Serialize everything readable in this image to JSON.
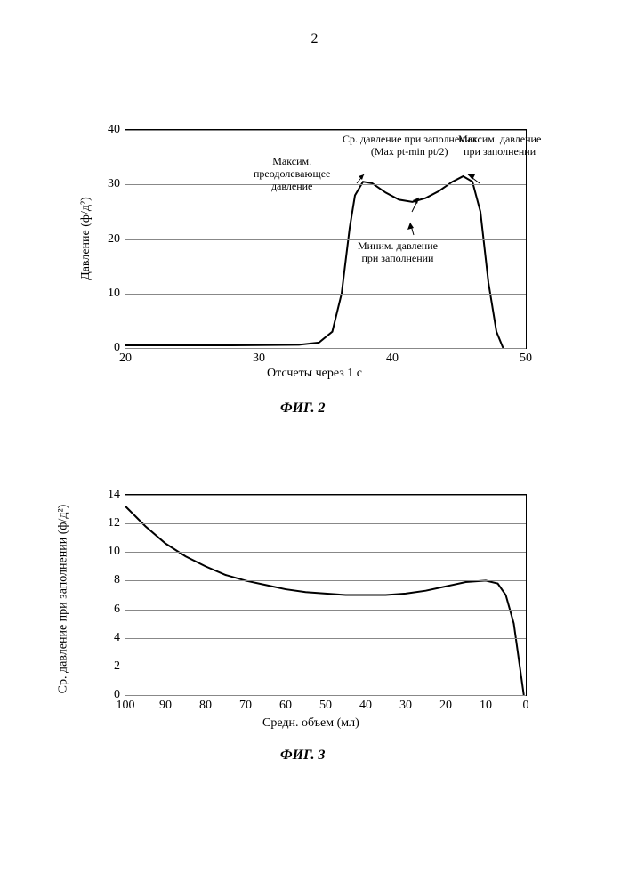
{
  "page_number": "2",
  "fig2": {
    "type": "line",
    "caption": "ФИГ. 2",
    "xlabel": "Отсчеты через 1 с",
    "ylabel": "Давление (ф/д²)",
    "xlim": [
      20,
      50
    ],
    "ylim": [
      0,
      40
    ],
    "xticks": [
      20,
      30,
      40,
      50
    ],
    "yticks": [
      0,
      10,
      20,
      30,
      40
    ],
    "grid_color": "#888888",
    "line_color": "#000000",
    "line_width": 2,
    "background_color": "#ffffff",
    "label_fontsize": 14,
    "tick_fontsize": 14,
    "series": [
      {
        "x": 20,
        "y": 0.5
      },
      {
        "x": 28,
        "y": 0.5
      },
      {
        "x": 33,
        "y": 0.6
      },
      {
        "x": 34.5,
        "y": 1.0
      },
      {
        "x": 35.5,
        "y": 3.0
      },
      {
        "x": 36.2,
        "y": 10.0
      },
      {
        "x": 36.8,
        "y": 22.0
      },
      {
        "x": 37.2,
        "y": 28.0
      },
      {
        "x": 37.8,
        "y": 30.5
      },
      {
        "x": 38.5,
        "y": 30.2
      },
      {
        "x": 39.5,
        "y": 28.5
      },
      {
        "x": 40.5,
        "y": 27.2
      },
      {
        "x": 41.5,
        "y": 26.8
      },
      {
        "x": 42.5,
        "y": 27.5
      },
      {
        "x": 43.5,
        "y": 28.8
      },
      {
        "x": 44.5,
        "y": 30.5
      },
      {
        "x": 45.3,
        "y": 31.5
      },
      {
        "x": 46.0,
        "y": 30.5
      },
      {
        "x": 46.6,
        "y": 25.0
      },
      {
        "x": 47.2,
        "y": 12.0
      },
      {
        "x": 47.8,
        "y": 3.0
      },
      {
        "x": 48.3,
        "y": 0.0
      }
    ],
    "annotations": {
      "max_break": "Максим.\nпреодолевающее\nдавление",
      "avg_fill": "Ср. давление при заполнении\n(Max pt-min pt/2)",
      "max_fill": "Максим. давление\nпри заполнении",
      "min_fill": "Миним. давление\nпри заполнении"
    }
  },
  "fig3": {
    "type": "line",
    "caption": "ФИГ. 3",
    "xlabel": "Средн. объем (мл)",
    "ylabel": "Ср. давление при заполнении (ф/д²)",
    "xlim": [
      100,
      0
    ],
    "ylim": [
      0,
      14
    ],
    "xticks": [
      100,
      90,
      80,
      70,
      60,
      50,
      40,
      30,
      20,
      10,
      0
    ],
    "yticks": [
      0,
      2,
      4,
      6,
      8,
      10,
      12,
      14
    ],
    "grid_color": "#888888",
    "line_color": "#000000",
    "line_width": 2,
    "background_color": "#ffffff",
    "label_fontsize": 14,
    "tick_fontsize": 14,
    "series": [
      {
        "x": 100,
        "y": 13.2
      },
      {
        "x": 95,
        "y": 11.8
      },
      {
        "x": 90,
        "y": 10.6
      },
      {
        "x": 85,
        "y": 9.7
      },
      {
        "x": 80,
        "y": 9.0
      },
      {
        "x": 75,
        "y": 8.4
      },
      {
        "x": 70,
        "y": 8.0
      },
      {
        "x": 65,
        "y": 7.7
      },
      {
        "x": 60,
        "y": 7.4
      },
      {
        "x": 55,
        "y": 7.2
      },
      {
        "x": 50,
        "y": 7.1
      },
      {
        "x": 45,
        "y": 7.0
      },
      {
        "x": 40,
        "y": 7.0
      },
      {
        "x": 35,
        "y": 7.0
      },
      {
        "x": 30,
        "y": 7.1
      },
      {
        "x": 25,
        "y": 7.3
      },
      {
        "x": 20,
        "y": 7.6
      },
      {
        "x": 15,
        "y": 7.9
      },
      {
        "x": 10,
        "y": 8.0
      },
      {
        "x": 7,
        "y": 7.8
      },
      {
        "x": 5,
        "y": 7.0
      },
      {
        "x": 3,
        "y": 5.0
      },
      {
        "x": 1.5,
        "y": 2.0
      },
      {
        "x": 0.5,
        "y": 0.0
      }
    ]
  }
}
